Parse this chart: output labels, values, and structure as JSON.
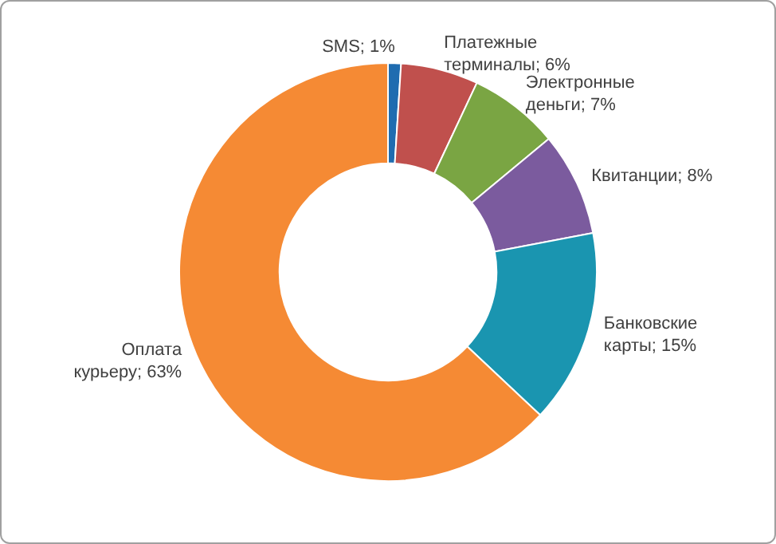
{
  "chart_data": {
    "type": "donut",
    "categories": [
      "SMS",
      "Платежные терминалы",
      "Электронные деньги",
      "Квитанции",
      "Банковские карты",
      "Оплата курьеру"
    ],
    "values": [
      1,
      6,
      7,
      8,
      15,
      63
    ],
    "value_labels": [
      "1%",
      "6%",
      "7%",
      "8%",
      "15%",
      "63%"
    ],
    "colors": [
      "#1f6cb0",
      "#c0504d",
      "#7aa543",
      "#7b5b9e",
      "#1a95b0",
      "#f58a34"
    ]
  }
}
